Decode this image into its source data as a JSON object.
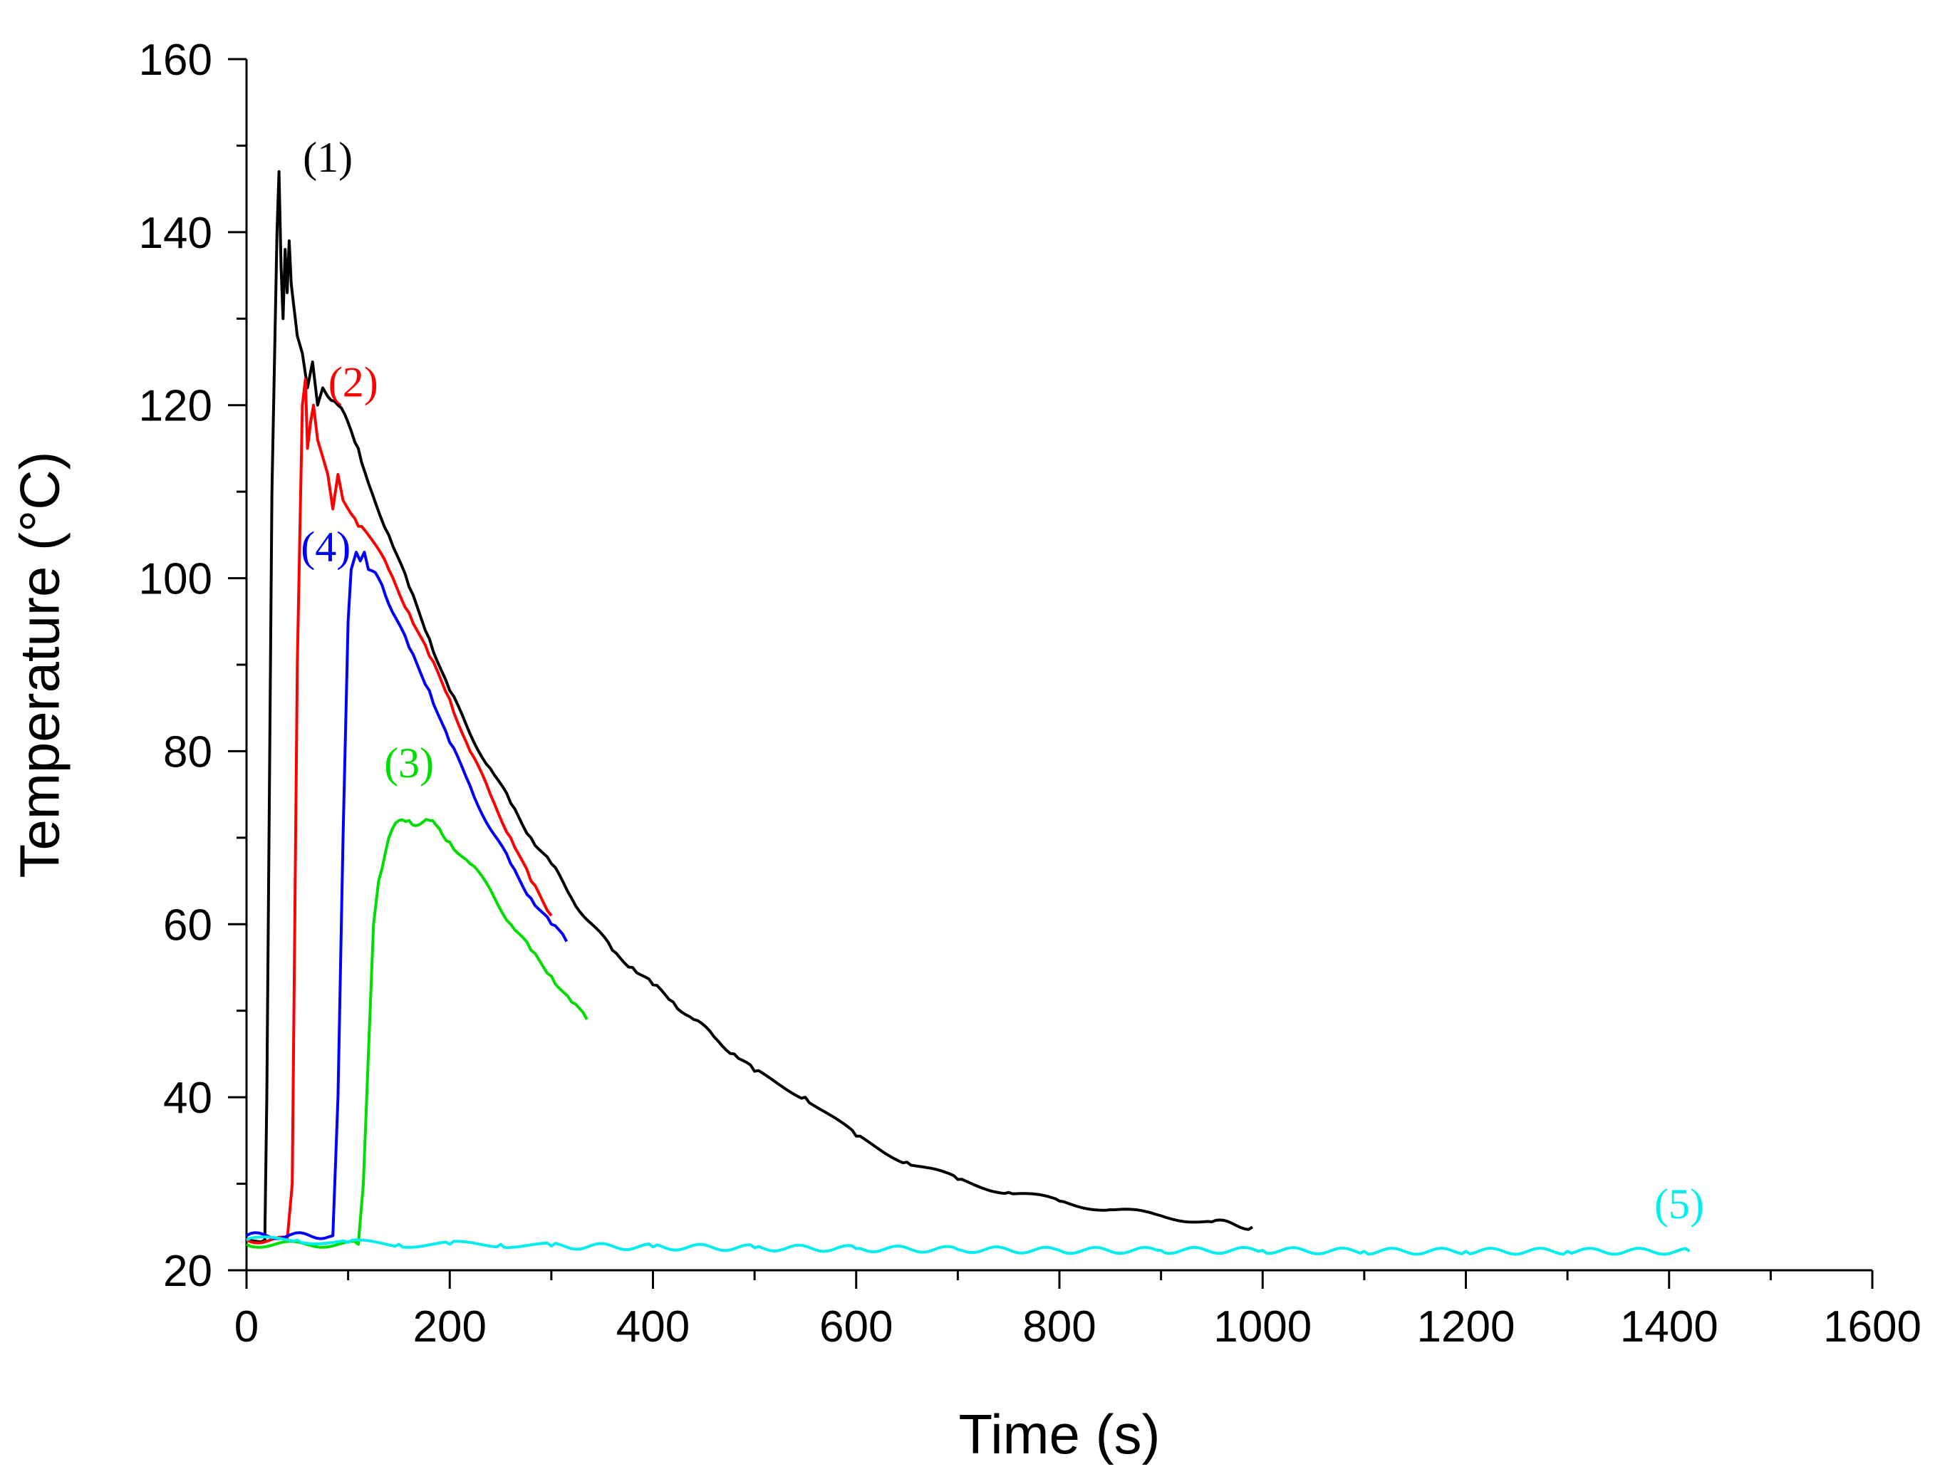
{
  "chart_data": {
    "type": "line",
    "title": "",
    "xlabel": "Time (s)",
    "ylabel": "Temperature (°C)",
    "xlim": [
      0,
      1600
    ],
    "ylim": [
      20,
      160
    ],
    "xticks": [
      0,
      200,
      400,
      600,
      800,
      1000,
      1200,
      1400,
      1600
    ],
    "yticks": [
      20,
      40,
      60,
      80,
      100,
      120,
      140,
      160
    ],
    "xtick_labels": [
      "0",
      "200",
      "400",
      "600",
      "800",
      "1000",
      "1200",
      "1400",
      "1600"
    ],
    "ytick_labels": [
      "20",
      "40",
      "60",
      "80",
      "100",
      "120",
      "140",
      "160"
    ],
    "grid": false,
    "series": [
      {
        "name": "(1)",
        "color": "#000000",
        "label_at": [
          80,
          147
        ],
        "x": [
          0,
          18,
          20,
          25,
          30,
          32,
          34,
          36,
          38,
          40,
          42,
          44,
          46,
          48,
          50,
          55,
          60,
          65,
          70,
          75,
          80,
          90,
          100,
          110,
          120,
          140,
          160,
          180,
          200,
          220,
          240,
          260,
          280,
          300,
          320,
          340,
          360,
          380,
          400,
          420,
          440,
          460,
          480,
          500,
          550,
          600,
          650,
          700,
          750,
          800,
          850,
          900,
          950,
          990
        ],
        "y": [
          23.5,
          23.5,
          40,
          110,
          140,
          147,
          136,
          130,
          138,
          133,
          139,
          134,
          132,
          130,
          128,
          126,
          122,
          125,
          120,
          122,
          121,
          120,
          118,
          115,
          111,
          105,
          99,
          93,
          87,
          82,
          78,
          74,
          70,
          67,
          63,
          60,
          57,
          55,
          53,
          51,
          49,
          47,
          45,
          43,
          40,
          35.5,
          32.5,
          30.5,
          29,
          28,
          27,
          26.3,
          25.6,
          25
        ]
      },
      {
        "name": "(2)",
        "color": "#ff0000",
        "label_at": [
          105,
          121
        ],
        "x": [
          0,
          40,
          45,
          50,
          55,
          58,
          60,
          63,
          66,
          70,
          75,
          80,
          85,
          90,
          95,
          100,
          110,
          120,
          140,
          160,
          180,
          200,
          220,
          240,
          260,
          280,
          300
        ],
        "y": [
          23.5,
          23.5,
          30,
          90,
          120,
          123,
          115,
          118,
          120,
          116,
          114,
          112,
          108,
          112,
          109,
          108,
          106,
          105,
          101,
          96,
          91,
          86,
          80,
          75,
          70,
          65,
          61
        ]
      },
      {
        "name": "(4)",
        "color": "#0000ff",
        "label_at": [
          78,
          102
        ],
        "x": [
          0,
          85,
          90,
          95,
          100,
          103,
          108,
          112,
          116,
          120,
          130,
          140,
          160,
          180,
          200,
          220,
          240,
          260,
          280,
          300,
          315
        ],
        "y": [
          24,
          24,
          40,
          70,
          95,
          101,
          103,
          102,
          103,
          101,
          100,
          97,
          92,
          87,
          81,
          76,
          71,
          67,
          63,
          60,
          58
        ]
      },
      {
        "name": "(3)",
        "color": "#00dd00",
        "label_at": [
          160,
          77
        ],
        "x": [
          0,
          110,
          115,
          120,
          125,
          130,
          140,
          150,
          160,
          170,
          180,
          190,
          200,
          220,
          240,
          260,
          280,
          300,
          320,
          335
        ],
        "y": [
          23,
          23,
          30,
          45,
          60,
          65,
          70,
          72,
          72,
          71.5,
          72,
          71,
          69.5,
          67,
          64,
          60,
          57,
          54,
          51,
          49
        ]
      },
      {
        "name": "(5)",
        "color": "#00eeee",
        "label_at": [
          1410,
          26
        ],
        "x": [
          0,
          50,
          100,
          150,
          200,
          250,
          300,
          400,
          500,
          600,
          700,
          800,
          900,
          1000,
          1100,
          1200,
          1300,
          1420
        ],
        "y": [
          23.5,
          23.5,
          23.2,
          23,
          23,
          23,
          22.8,
          22.7,
          22.6,
          22.5,
          22.4,
          22.3,
          22.3,
          22.3,
          22.2,
          22.2,
          22.2,
          22.2
        ]
      }
    ]
  }
}
